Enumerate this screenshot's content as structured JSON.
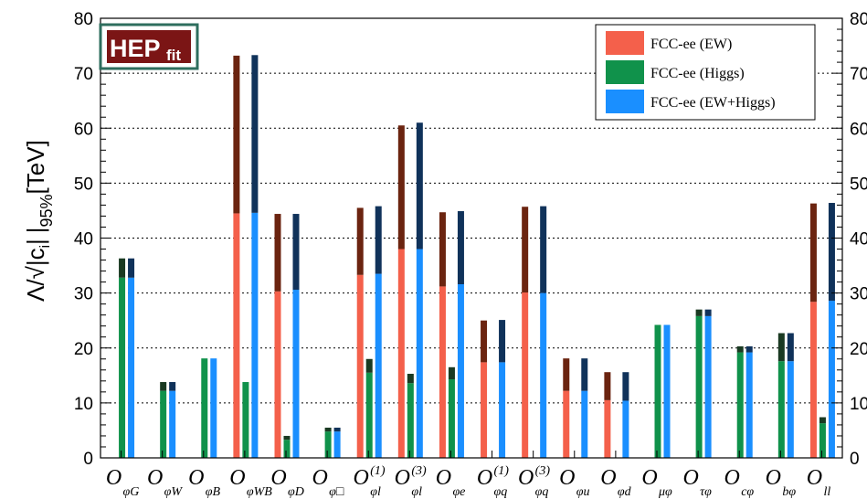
{
  "logo": {
    "main": "HEP",
    "sub": "fit"
  },
  "chart_data": {
    "type": "bar",
    "ylabel": "Λ/√|c_i| |_95% [TeV]",
    "ylabel_parts": {
      "lambda": "Λ/",
      "ci": "|c",
      "ci_sub": "i",
      "ci_close": "|",
      "bar": "|",
      "pct": "95%",
      "unit": "[TeV]"
    },
    "ylim": [
      0,
      80
    ],
    "yticks": [
      "0",
      "10",
      "20",
      "30",
      "40",
      "50",
      "60",
      "70",
      "80"
    ],
    "grid": "horizontal dotted",
    "legend_position": "top-right",
    "categories": [
      {
        "O": "O",
        "sub": "φG",
        "sup": ""
      },
      {
        "O": "O",
        "sub": "φW",
        "sup": ""
      },
      {
        "O": "O",
        "sub": "φB",
        "sup": ""
      },
      {
        "O": "O",
        "sub": "φWB",
        "sup": ""
      },
      {
        "O": "O",
        "sub": "φD",
        "sup": ""
      },
      {
        "O": "O",
        "sub": "φ□",
        "sup": ""
      },
      {
        "O": "O",
        "sub": "φl",
        "sup": "(1)"
      },
      {
        "O": "O",
        "sub": "φl",
        "sup": "(3)"
      },
      {
        "O": "O",
        "sub": "φe",
        "sup": ""
      },
      {
        "O": "O",
        "sub": "φq",
        "sup": "(1)"
      },
      {
        "O": "O",
        "sub": "φq",
        "sup": "(3)"
      },
      {
        "O": "O",
        "sub": "φu",
        "sup": ""
      },
      {
        "O": "O",
        "sub": "φd",
        "sup": ""
      },
      {
        "O": "O",
        "sub": "μφ",
        "sup": ""
      },
      {
        "O": "O",
        "sub": "τφ",
        "sup": ""
      },
      {
        "O": "O",
        "sub": "cφ",
        "sup": ""
      },
      {
        "O": "O",
        "sub": "bφ",
        "sup": ""
      },
      {
        "O": "O",
        "sub": "ll",
        "sup": ""
      }
    ],
    "series": [
      {
        "name": "FCC-ee (EW)",
        "color": "#f4604b",
        "cap_color": "#6b2410",
        "low": [
          null,
          null,
          null,
          44.5,
          30.3,
          null,
          33.3,
          38.0,
          31.2,
          17.4,
          30.1,
          12.2,
          10.5,
          null,
          null,
          null,
          null,
          28.4
        ],
        "high": [
          null,
          null,
          null,
          73.2,
          44.4,
          null,
          45.5,
          60.5,
          44.7,
          25.0,
          45.7,
          18.1,
          15.6,
          null,
          null,
          null,
          null,
          46.3
        ]
      },
      {
        "name": "FCC-ee (Higgs)",
        "color": "#10924b",
        "cap_color": "#1a3a22",
        "low": [
          32.8,
          12.2,
          18.1,
          13.8,
          3.3,
          4.8,
          15.5,
          13.6,
          14.3,
          null,
          null,
          null,
          null,
          24.2,
          25.8,
          19.2,
          17.6,
          6.3
        ],
        "high": [
          36.3,
          13.8,
          18.1,
          13.8,
          4.0,
          5.5,
          18.0,
          15.3,
          16.5,
          null,
          null,
          null,
          null,
          24.2,
          27.0,
          20.3,
          22.7,
          7.4
        ]
      },
      {
        "name": "FCC-ee (EW+Higgs)",
        "color": "#1a8fff",
        "cap_color": "#10325a",
        "low": [
          32.8,
          12.2,
          18.1,
          44.6,
          30.6,
          4.8,
          33.5,
          38.0,
          31.6,
          17.4,
          30.0,
          12.2,
          10.4,
          24.2,
          25.8,
          19.2,
          17.6,
          28.6
        ],
        "high": [
          36.3,
          13.8,
          18.1,
          73.3,
          44.4,
          5.5,
          45.8,
          61.0,
          44.9,
          25.1,
          45.8,
          18.1,
          15.6,
          24.2,
          27.0,
          20.3,
          22.7,
          46.4
        ]
      }
    ]
  }
}
